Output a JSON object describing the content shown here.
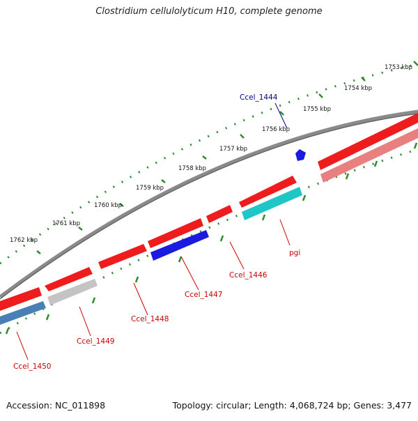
{
  "title": "Clostridium cellulolyticum H10, complete genome",
  "footer": {
    "accession": "Accession: NC_011898",
    "summary": "Topology: circular; Length: 4,068,724 bp; Genes: 3,477"
  },
  "colors": {
    "backbone": "#8a8a8a",
    "tick": "#2e8b2e",
    "gene_red": "#ee1c1c",
    "gene_pink": "#e88080",
    "gene_blue": "#1a1ae0",
    "gene_cyan": "#1fc6c6",
    "gene_gray": "#c4c4c4",
    "gene_steel": "#4a7fb5",
    "label_red": "#cc0000",
    "label_blue": "#00008b"
  },
  "scale_labels": [
    "1753 kbp",
    "1754 kbp",
    "1755 kbp",
    "1756 kbp",
    "1757 kbp",
    "1758 kbp",
    "1759 kbp",
    "1760 kbp",
    "1761 kbp",
    "1762 kbp"
  ],
  "genes": [
    {
      "label": "Ccel_1444",
      "color": "blue"
    },
    {
      "label": "pgi",
      "color": "red"
    },
    {
      "label": "Ccel_1446",
      "color": "red"
    },
    {
      "label": "Ccel_1447",
      "color": "red"
    },
    {
      "label": "Ccel_1448",
      "color": "red"
    },
    {
      "label": "Ccel_1449",
      "color": "red"
    },
    {
      "label": "Ccel_1450",
      "color": "red"
    }
  ]
}
